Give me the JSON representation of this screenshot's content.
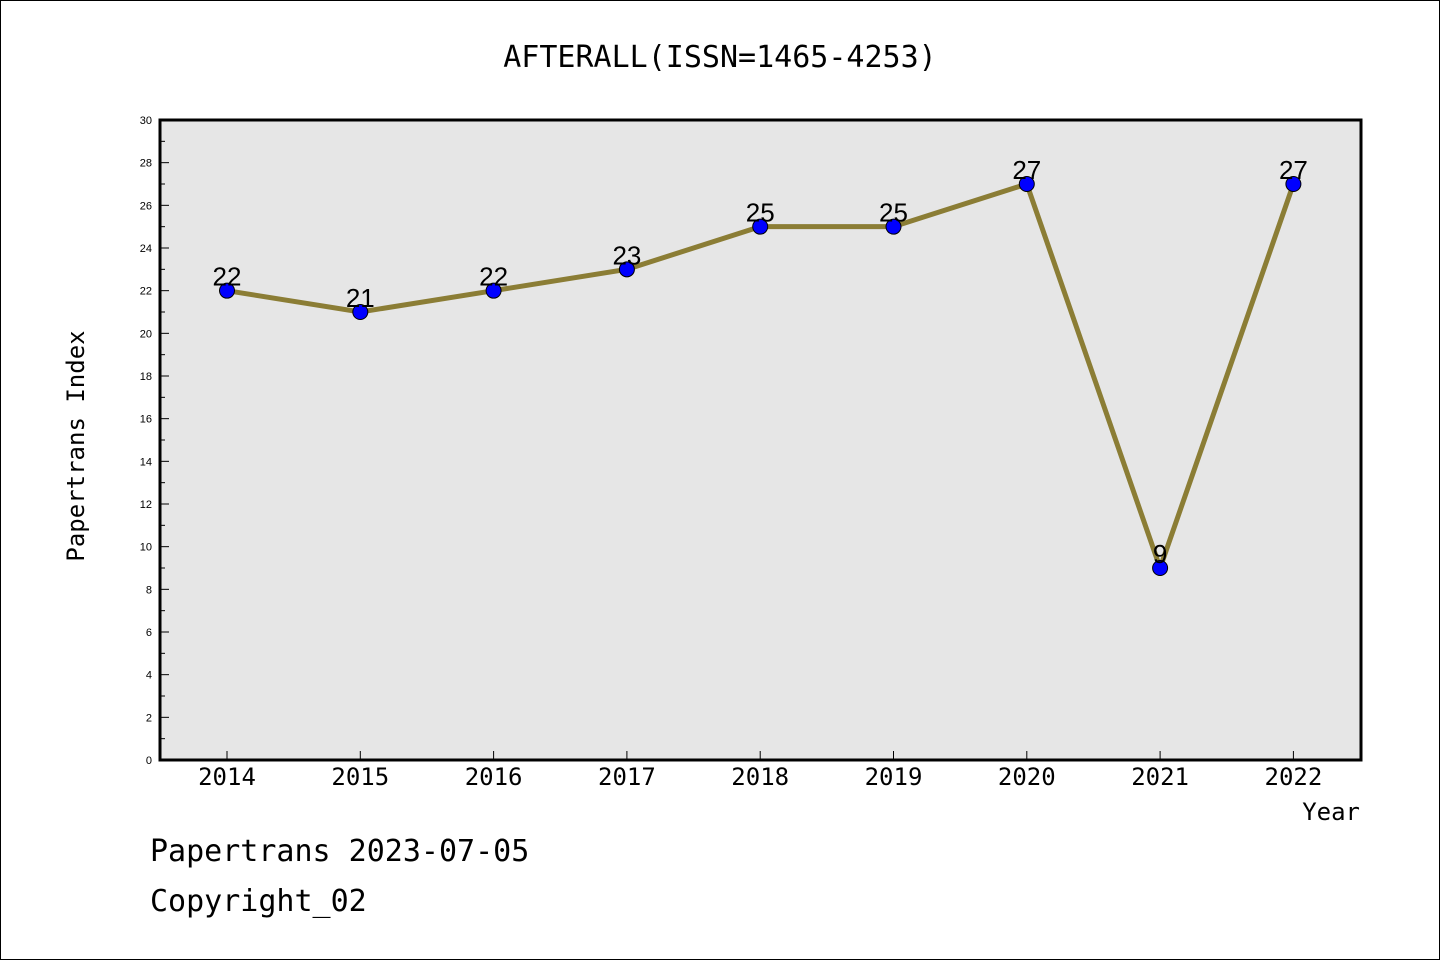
{
  "footer": {
    "line1": "Papertrans 2023-07-05",
    "line2": "Copyright_02"
  },
  "chart_data": {
    "type": "line",
    "title": "AFTERALL(ISSN=1465-4253)",
    "xlabel": "Year",
    "ylabel": "Papertrans Index",
    "categories": [
      "2014",
      "2015",
      "2016",
      "2017",
      "2018",
      "2019",
      "2020",
      "2021",
      "2022"
    ],
    "series": [
      {
        "values": [
          22,
          21,
          22,
          23,
          25,
          25,
          27,
          9,
          27
        ]
      }
    ],
    "data_labels": [
      "22",
      "21",
      "22",
      "23",
      "25",
      "25",
      "27",
      "9",
      "27"
    ],
    "ylim": [
      0,
      30
    ],
    "yticks": [
      "0",
      "2",
      "4",
      "6",
      "8",
      "10",
      "12",
      "14",
      "16",
      "18",
      "20",
      "22",
      "24",
      "26",
      "28",
      "30"
    ],
    "grid": false,
    "legend": "none",
    "colors": {
      "plot_background": "#e6e6e6",
      "line": "#8b7d35",
      "marker": "#0000ff"
    }
  }
}
